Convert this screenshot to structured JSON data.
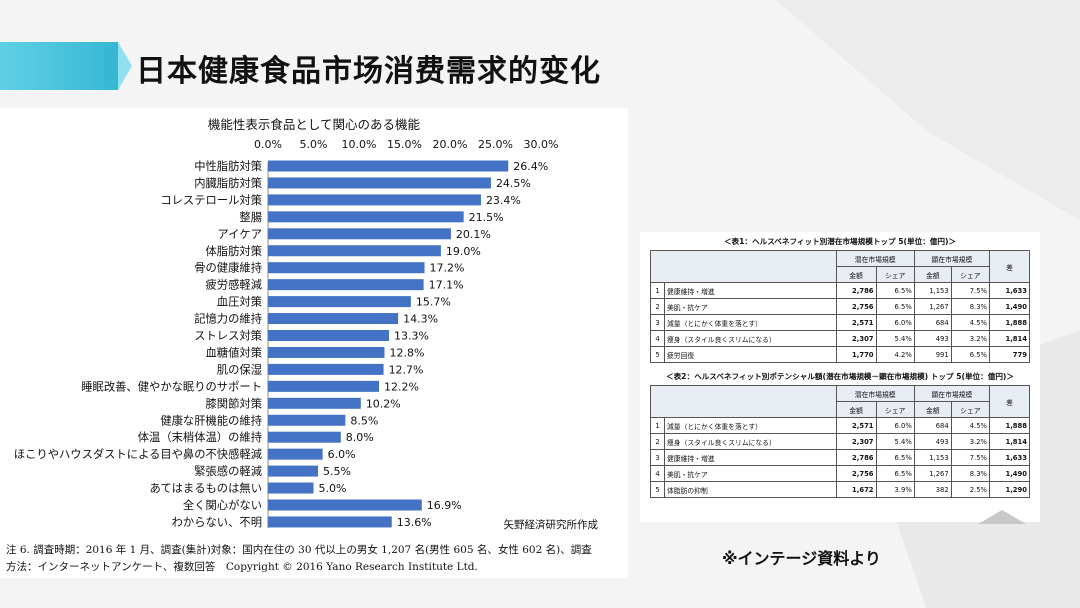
{
  "slide": {
    "title": "日本健康食品市场消费需求的变化"
  },
  "chart_data": {
    "type": "bar",
    "title": "機能性表示食品として関心のある機能",
    "xlim": [
      0,
      30
    ],
    "ticks": [
      "0.0%",
      "5.0%",
      "10.0%",
      "15.0%",
      "20.0%",
      "25.0%",
      "30.0%"
    ],
    "categories": [
      "中性脂肪対策",
      "内臓脂肪対策",
      "コレステロール対策",
      "整腸",
      "アイケア",
      "体脂肪対策",
      "骨の健康維持",
      "疲労感軽減",
      "血圧対策",
      "記憶力の維持",
      "ストレス対策",
      "血糖値対策",
      "肌の保湿",
      "睡眠改善、健やかな眠りのサポート",
      "膝関節対策",
      "健康な肝機能の維持",
      "体温（末梢体温）の維持",
      "ほこりやハウスダストによる目や鼻の不快感軽減",
      "緊張感の軽減",
      "あてはまるものは無い",
      "全く関心がない",
      "わからない、不明"
    ],
    "values": [
      26.4,
      24.5,
      23.4,
      21.5,
      20.1,
      19.0,
      17.2,
      17.1,
      15.7,
      14.3,
      13.3,
      12.8,
      12.7,
      12.2,
      10.2,
      8.5,
      8.0,
      6.0,
      5.5,
      5.0,
      16.9,
      13.6
    ],
    "labels": [
      "26.4%",
      "24.5%",
      "23.4%",
      "21.5%",
      "20.1%",
      "19.0%",
      "17.2%",
      "17.1%",
      "15.7%",
      "14.3%",
      "13.3%",
      "12.8%",
      "12.7%",
      "12.2%",
      "10.2%",
      "8.5%",
      "8.0%",
      "6.0%",
      "5.5%",
      "5.0%",
      "16.9%",
      "13.6%"
    ],
    "bar_color": "#4472c4",
    "grid": false
  },
  "chart_source": "矢野経済研究所作成",
  "notes": {
    "line1": "注 6. 調査時期：2016 年 1 月、調査(集計)対象：国内在住の 30 代以上の男女 1,207 名(男性 605 名、女性 602 名)、調査",
    "line2": "方法：インターネットアンケート、複数回答　Copyright © 2016 Yano Research Institute Ltd."
  },
  "table1": {
    "caption": "＜表1：ヘルスベネフィット別潜在市場規模トップ 5(単位：億円)＞",
    "group_headers": [
      "潜在市場規模",
      "顕在市場規模",
      "差"
    ],
    "sub_headers": [
      "金額",
      "シェア",
      "金額",
      "シェア"
    ],
    "rows": [
      [
        "1",
        "健康維持・増進",
        "2,786",
        "6.5%",
        "1,153",
        "7.5%",
        "1,633"
      ],
      [
        "2",
        "美肌・抗ケア",
        "2,756",
        "6.5%",
        "1,267",
        "8.3%",
        "1,490"
      ],
      [
        "3",
        "減量（とにかく体重を落とす）",
        "2,571",
        "6.0%",
        "684",
        "4.5%",
        "1,888"
      ],
      [
        "4",
        "痩身（スタイル良くスリムになる）",
        "2,307",
        "5.4%",
        "493",
        "3.2%",
        "1,814"
      ],
      [
        "5",
        "疲労回復",
        "1,770",
        "4.2%",
        "991",
        "6.5%",
        "779"
      ]
    ]
  },
  "table2": {
    "caption": "＜表2：ヘルスベネフィット別ポテンシャル額(潜在市場規模－顕在市場規模) トップ 5(単位：億円)＞",
    "group_headers": [
      "潜在市場規模",
      "顕在市場規模",
      "差"
    ],
    "sub_headers": [
      "金額",
      "シェア",
      "金額",
      "シェア"
    ],
    "rows": [
      [
        "1",
        "減量（とにかく体重を落とす）",
        "2,571",
        "6.0%",
        "684",
        "4.5%",
        "1,888"
      ],
      [
        "2",
        "痩身（スタイル良くスリムになる）",
        "2,307",
        "5.4%",
        "493",
        "3.2%",
        "1,814"
      ],
      [
        "3",
        "健康維持・増進",
        "2,786",
        "6.5%",
        "1,153",
        "7.5%",
        "1,633"
      ],
      [
        "4",
        "美肌・抗ケア",
        "2,756",
        "6.5%",
        "1,267",
        "8.3%",
        "1,490"
      ],
      [
        "5",
        "体脂肪の抑制",
        "1,672",
        "3.9%",
        "382",
        "2.5%",
        "1,290"
      ]
    ]
  },
  "footer_note": "※インテージ資料より"
}
